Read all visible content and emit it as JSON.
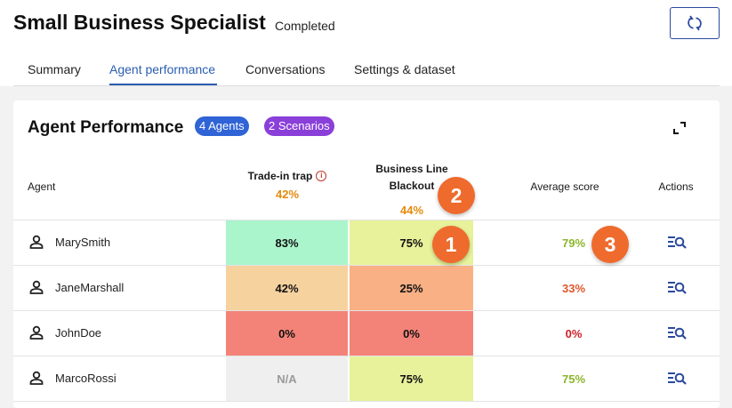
{
  "header": {
    "title": "Small Business Specialist",
    "status": "Completed",
    "refresh_icon": "refresh-icon"
  },
  "tabs": [
    {
      "label": "Summary",
      "active": false
    },
    {
      "label": "Agent performance",
      "active": true
    },
    {
      "label": "Conversations",
      "active": false
    },
    {
      "label": "Settings & dataset",
      "active": false
    }
  ],
  "panel": {
    "title": "Agent Performance",
    "agents_badge": "4 Agents",
    "scenarios_badge": "2 Scenarios",
    "expand_icon": "expand-icon"
  },
  "columns": {
    "agent": "Agent",
    "trade_in": {
      "label": "Trade-in trap",
      "avg": "42%"
    },
    "blackout": {
      "label": "Business Line Blackout",
      "avg": "44%"
    },
    "average": "Average score",
    "actions": "Actions"
  },
  "rows": [
    {
      "name": "MarySmith",
      "trade_in": "83%",
      "blackout": "75%",
      "average": "79%",
      "trade_color": "#aaf5cc",
      "blackout_color": "#e7f29b",
      "avg_color": "#8bb52c"
    },
    {
      "name": "JaneMarshall",
      "trade_in": "42%",
      "blackout": "25%",
      "average": "33%",
      "trade_color": "#f6d29e",
      "blackout_color": "#f9b085",
      "avg_color": "#e0572a"
    },
    {
      "name": "JohnDoe",
      "trade_in": "0%",
      "blackout": "0%",
      "average": "0%",
      "trade_color": "#f38378",
      "blackout_color": "#f38378",
      "avg_color": "#d0202a"
    },
    {
      "name": "MarcoRossi",
      "trade_in": "N/A",
      "blackout": "75%",
      "average": "75%",
      "trade_color": "#efefef",
      "blackout_color": "#e7f29b",
      "avg_color": "#8bb52c"
    }
  ],
  "markers": [
    "1",
    "2",
    "3"
  ],
  "colors": {
    "accent": "#2a5db0",
    "marker": "#ee6b2d",
    "agents_badge": "#2f63d6",
    "scenarios_badge": "#8a3fd9",
    "na_text": "#9a9a9a"
  }
}
